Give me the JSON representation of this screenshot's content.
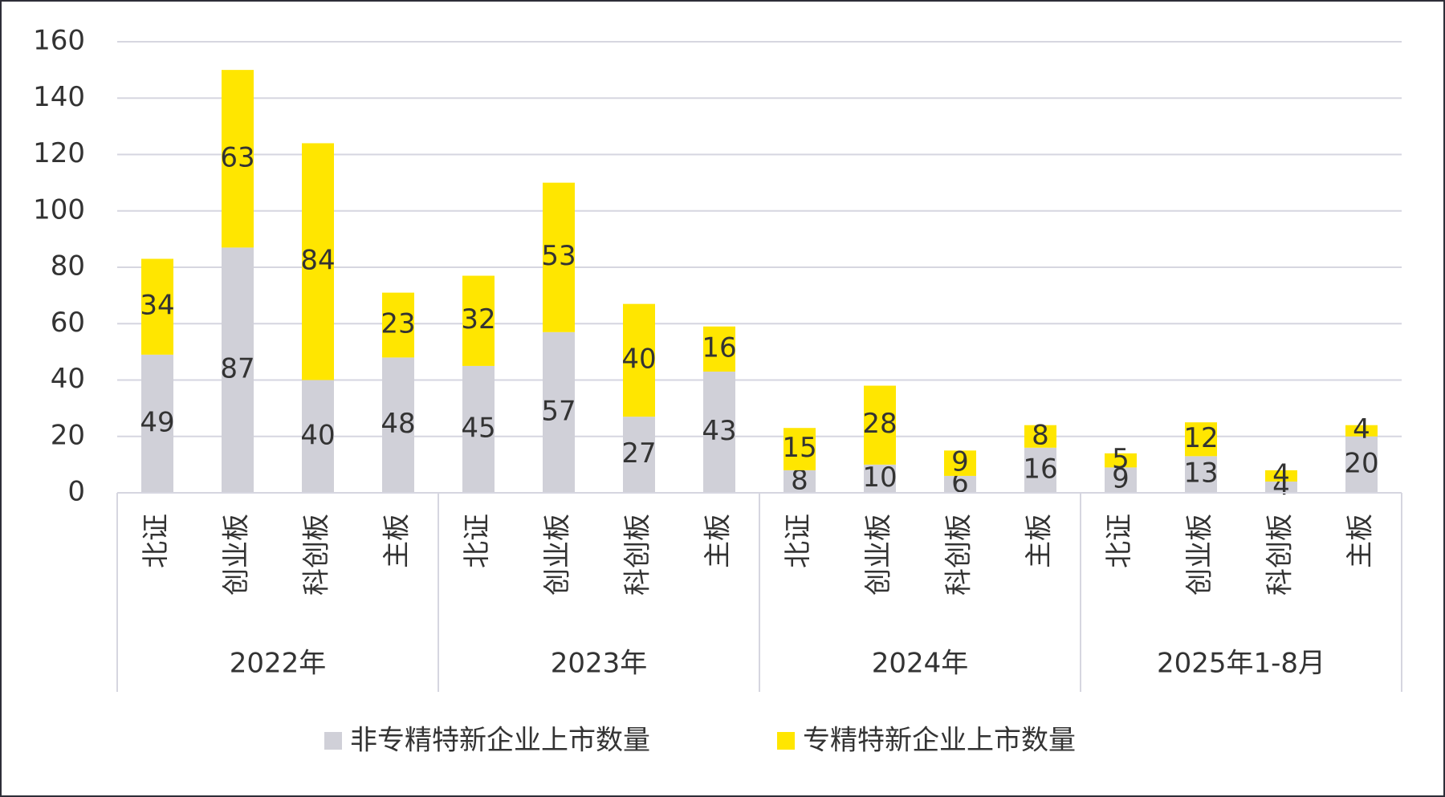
{
  "chart_data": {
    "type": "stacked_bar",
    "groups": [
      {
        "name": "2022年",
        "categories": [
          "北证",
          "创业板",
          "科创板",
          "主板"
        ]
      },
      {
        "name": "2023年",
        "categories": [
          "北证",
          "创业板",
          "科创板",
          "主板"
        ]
      },
      {
        "name": "2024年",
        "categories": [
          "北证",
          "创业板",
          "科创板",
          "主板"
        ]
      },
      {
        "name": "2025年1-8月",
        "categories": [
          "北证",
          "创业板",
          "科创板",
          "主板"
        ]
      }
    ],
    "series": [
      {
        "name": "非专精特新企业上市数量",
        "color": "#d0d0d8",
        "values": [
          49,
          87,
          40,
          48,
          45,
          57,
          27,
          43,
          8,
          10,
          6,
          16,
          9,
          13,
          4,
          20
        ]
      },
      {
        "name": "专精特新企业上市数量",
        "color": "#ffe600",
        "values": [
          34,
          63,
          84,
          23,
          32,
          53,
          40,
          16,
          15,
          28,
          9,
          8,
          5,
          12,
          4,
          4
        ]
      }
    ],
    "ylim": [
      0,
      160
    ],
    "yticks": [
      0,
      20,
      40,
      60,
      80,
      100,
      120,
      140,
      160
    ],
    "grid": true
  }
}
